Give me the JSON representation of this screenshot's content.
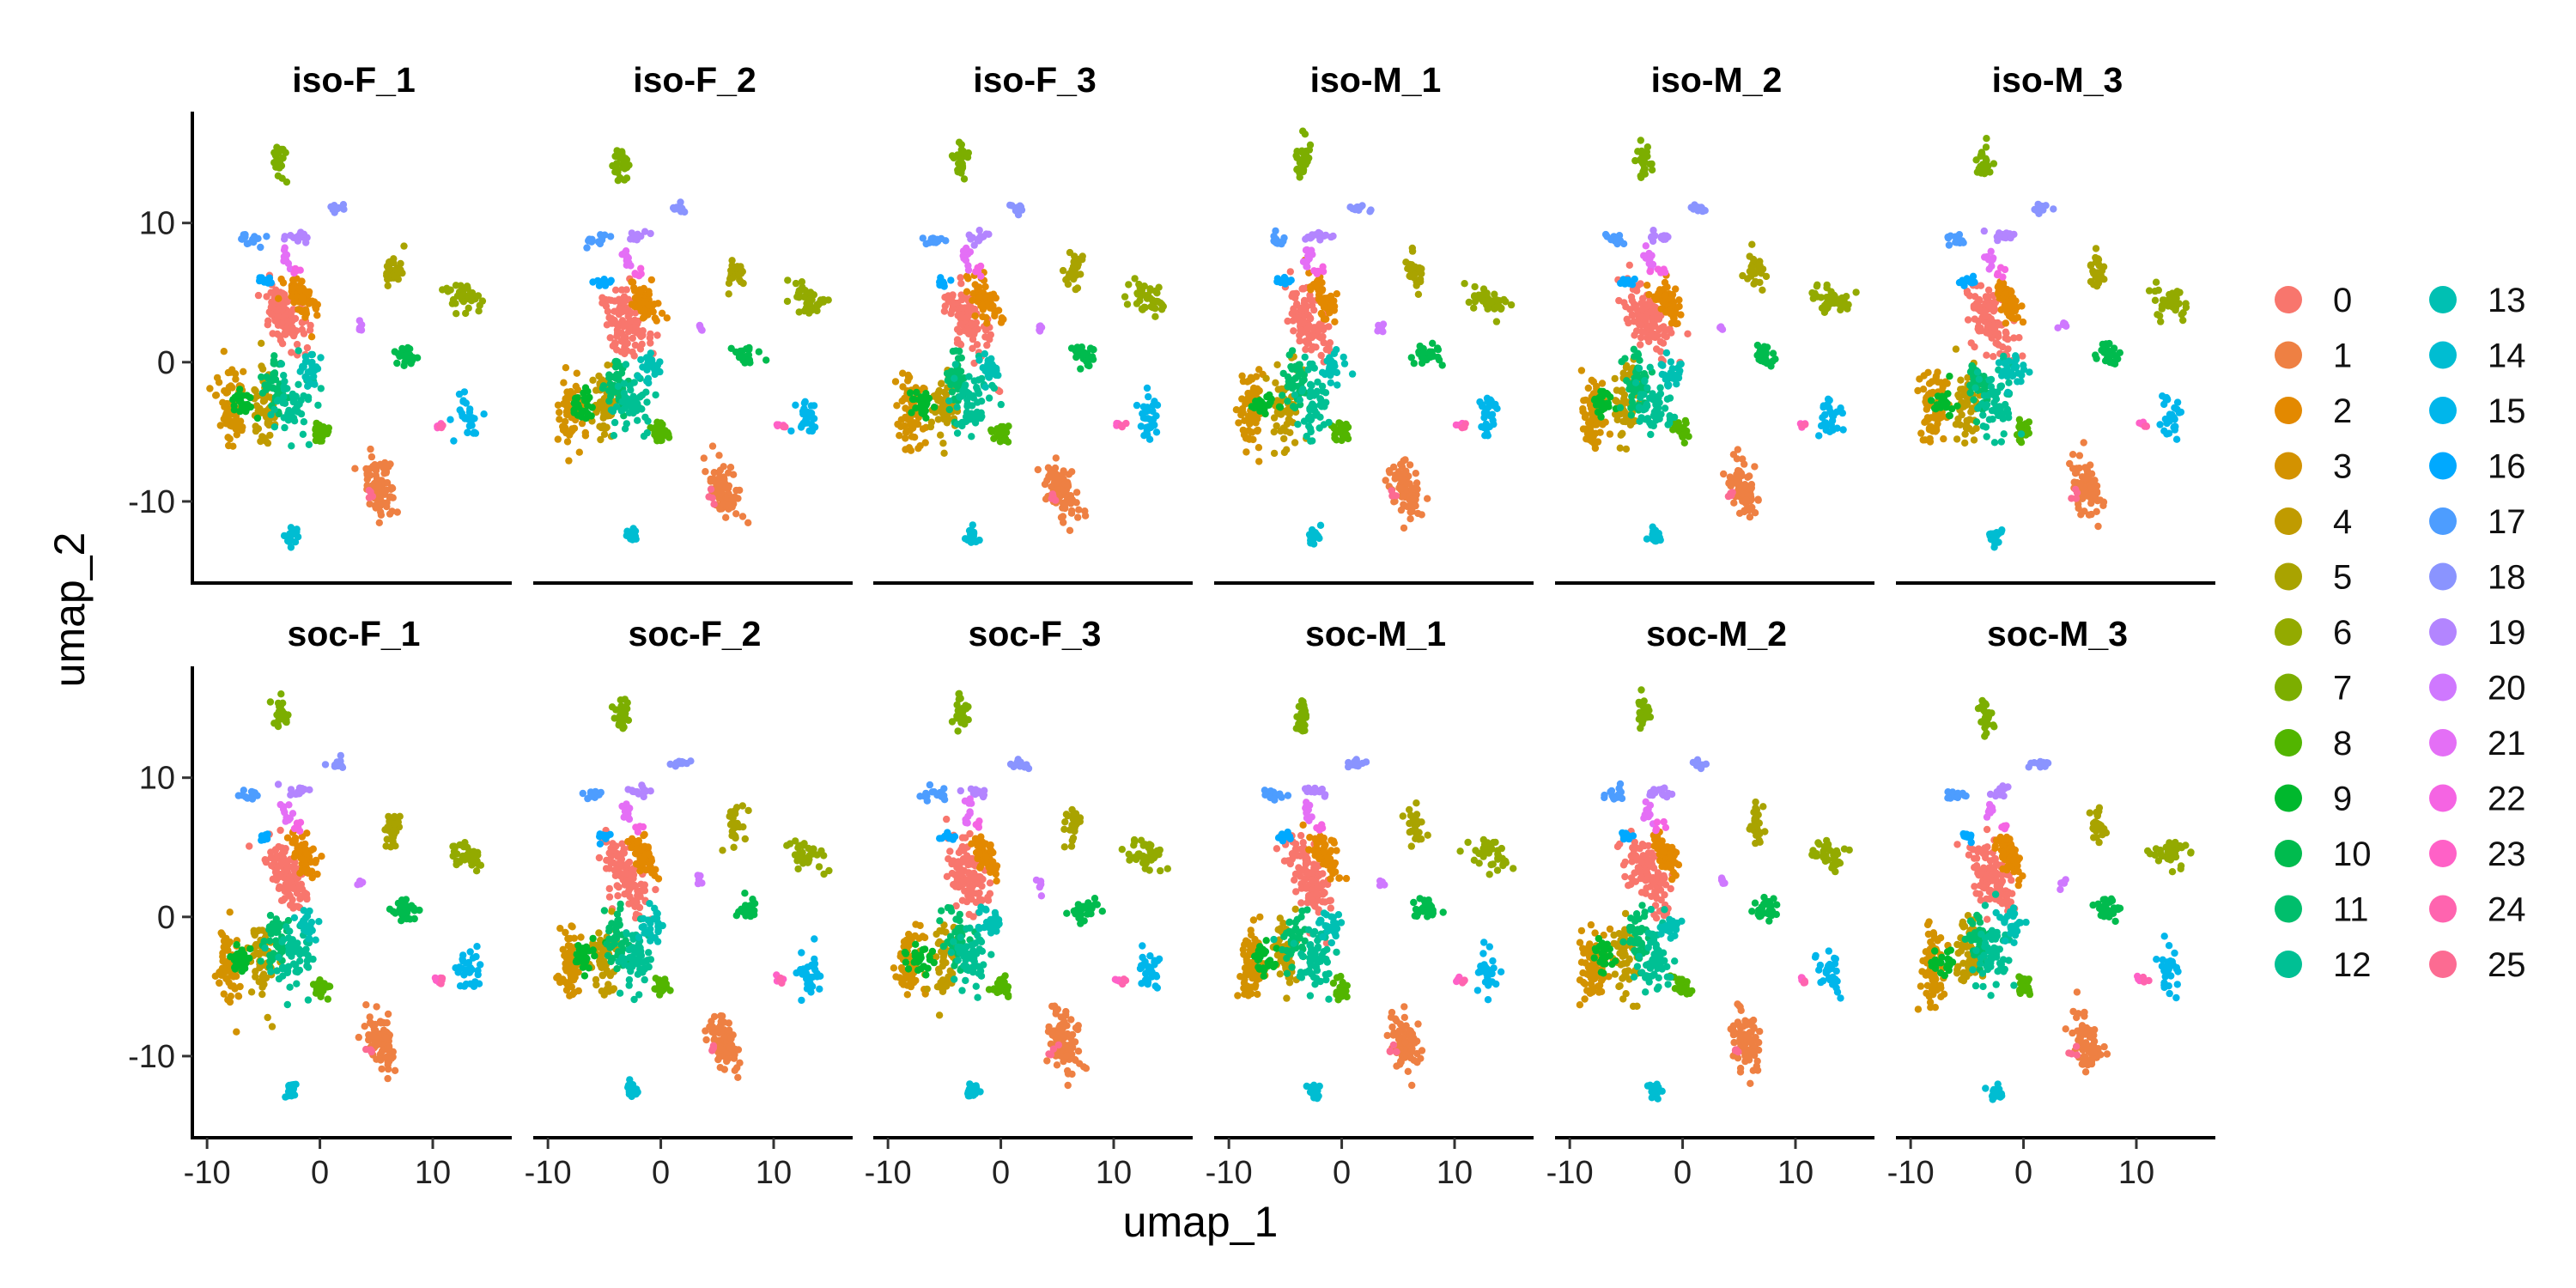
{
  "chart_data": {
    "type": "scatter",
    "xlabel": "umap_1",
    "ylabel": "umap_2",
    "xlim": [
      -11,
      17
    ],
    "ylim": [
      -15,
      18
    ],
    "x_ticks": [
      -10,
      0,
      10
    ],
    "y_ticks": [
      -10,
      0,
      10
    ],
    "grid": false,
    "legend_placement": "right",
    "panels": [
      {
        "title": "iso-F_1"
      },
      {
        "title": "iso-F_2"
      },
      {
        "title": "iso-F_3"
      },
      {
        "title": "iso-M_1"
      },
      {
        "title": "iso-M_2"
      },
      {
        "title": "iso-M_3"
      },
      {
        "title": "soc-F_1"
      },
      {
        "title": "soc-F_2"
      },
      {
        "title": "soc-F_3"
      },
      {
        "title": "soc-M_1"
      },
      {
        "title": "soc-M_2"
      },
      {
        "title": "soc-M_3"
      }
    ],
    "clusters": [
      {
        "id": "0",
        "color": "#F8766D",
        "x": -3,
        "y": 3,
        "sx": 1.3,
        "sy": 2.6,
        "rot": 0.55,
        "n": 110
      },
      {
        "id": "1",
        "color": "#EE8043",
        "x": 5.5,
        "y": -9,
        "sx": 1.1,
        "sy": 2.0,
        "rot": 0.35,
        "n": 80
      },
      {
        "id": "2",
        "color": "#E38900",
        "x": -1.5,
        "y": 4.5,
        "sx": 0.8,
        "sy": 1.6,
        "rot": 0.6,
        "n": 60
      },
      {
        "id": "3",
        "color": "#D39200",
        "x": -8,
        "y": -3.5,
        "sx": 1.0,
        "sy": 2.5,
        "rot": 0,
        "n": 70
      },
      {
        "id": "4",
        "color": "#C09B00",
        "x": -5,
        "y": -3,
        "sx": 1.0,
        "sy": 2.4,
        "rot": 0,
        "n": 55
      },
      {
        "id": "5",
        "color": "#A9A300",
        "x": 6.5,
        "y": 6.5,
        "sx": 0.7,
        "sy": 1.2,
        "rot": 0,
        "n": 28
      },
      {
        "id": "6",
        "color": "#93AA00",
        "x": 13,
        "y": 4.5,
        "sx": 1.6,
        "sy": 0.9,
        "rot": -0.3,
        "n": 40
      },
      {
        "id": "7",
        "color": "#7CAE00",
        "x": -3.5,
        "y": 14.5,
        "sx": 0.6,
        "sy": 1.2,
        "rot": 0,
        "n": 26
      },
      {
        "id": "8",
        "color": "#52B500",
        "x": 0,
        "y": -5,
        "sx": 0.7,
        "sy": 0.7,
        "rot": 0,
        "n": 24
      },
      {
        "id": "9",
        "color": "#00B82D",
        "x": -7,
        "y": -3,
        "sx": 1.0,
        "sy": 1.0,
        "rot": 0,
        "n": 25
      },
      {
        "id": "10",
        "color": "#00BB4E",
        "x": 7.5,
        "y": 0.5,
        "sx": 1.0,
        "sy": 0.7,
        "rot": 0,
        "n": 30
      },
      {
        "id": "11",
        "color": "#00BE6C",
        "x": -4,
        "y": -1.5,
        "sx": 1.0,
        "sy": 2.0,
        "rot": 0,
        "n": 40
      },
      {
        "id": "12",
        "color": "#00C094",
        "x": -2.5,
        "y": -3,
        "sx": 1.5,
        "sy": 2.2,
        "rot": 0,
        "n": 55
      },
      {
        "id": "13",
        "color": "#00C0B3",
        "x": -1,
        "y": -0.5,
        "sx": 0.9,
        "sy": 1.0,
        "rot": 0,
        "n": 25
      },
      {
        "id": "14",
        "color": "#00BDD2",
        "x": -2.5,
        "y": -12.5,
        "sx": 0.5,
        "sy": 0.5,
        "rot": 0,
        "n": 20
      },
      {
        "id": "15",
        "color": "#00B6EB",
        "x": 13,
        "y": -4,
        "sx": 0.9,
        "sy": 1.5,
        "rot": 0,
        "n": 30
      },
      {
        "id": "16",
        "color": "#00A9FF",
        "x": -5,
        "y": 5.8,
        "sx": 0.6,
        "sy": 0.3,
        "rot": 0,
        "n": 10
      },
      {
        "id": "17",
        "color": "#4D9DFF",
        "x": -6,
        "y": 8.8,
        "sx": 1.0,
        "sy": 0.4,
        "rot": 0,
        "n": 14
      },
      {
        "id": "18",
        "color": "#8A94FF",
        "x": 1.5,
        "y": 11,
        "sx": 0.7,
        "sy": 0.3,
        "rot": 0,
        "n": 12
      },
      {
        "id": "19",
        "color": "#B385FF",
        "x": -2,
        "y": 9,
        "sx": 1.0,
        "sy": 0.35,
        "rot": 0,
        "n": 14
      },
      {
        "id": "20",
        "color": "#CF78FF",
        "x": 3.5,
        "y": 2.5,
        "sx": 0.3,
        "sy": 0.4,
        "rot": 0,
        "n": 5
      },
      {
        "id": "21",
        "color": "#E46FF6",
        "x": -3,
        "y": 7.5,
        "sx": 0.4,
        "sy": 0.8,
        "rot": 0,
        "n": 10
      },
      {
        "id": "22",
        "color": "#F564E3",
        "x": -2,
        "y": 6.5,
        "sx": 0.5,
        "sy": 0.4,
        "rot": 0,
        "n": 5
      },
      {
        "id": "23",
        "color": "#FF61C7",
        "x": 10.5,
        "y": -4.5,
        "sx": 0.4,
        "sy": 0.2,
        "rot": 0,
        "n": 4
      },
      {
        "id": "24",
        "color": "#FF64AF",
        "x": 10.8,
        "y": -4.6,
        "sx": 0.3,
        "sy": 0.2,
        "rot": 0,
        "n": 3
      },
      {
        "id": "25",
        "color": "#FC6B92",
        "x": 4.5,
        "y": -9.5,
        "sx": 0.4,
        "sy": 0.5,
        "rot": 0,
        "n": 4
      }
    ]
  }
}
